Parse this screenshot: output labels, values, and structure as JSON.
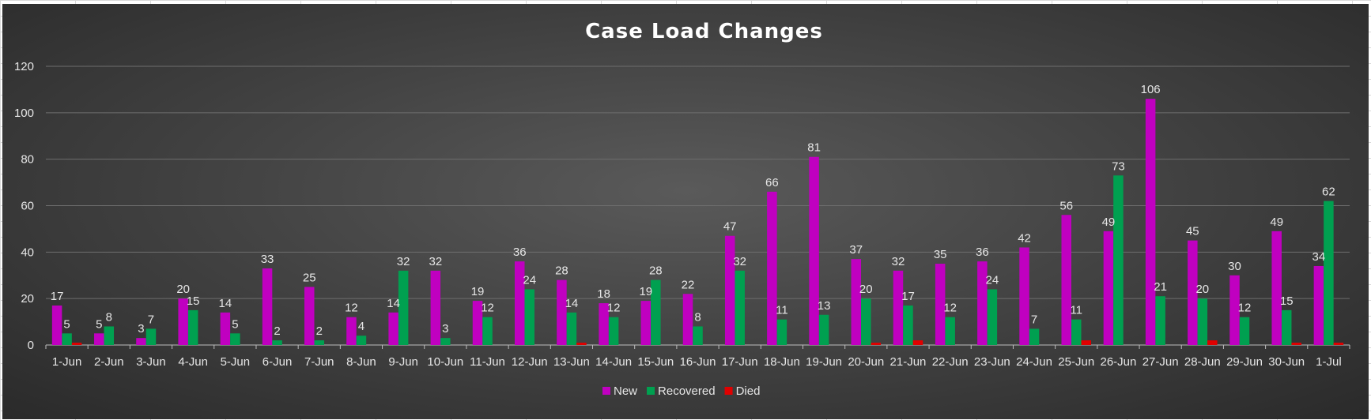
{
  "chart_data": {
    "type": "bar",
    "title": "Case Load Changes",
    "xlabel": "",
    "ylabel": "",
    "ylim": [
      0,
      120
    ],
    "yticks": [
      0,
      20,
      40,
      60,
      80,
      100,
      120
    ],
    "grid": true,
    "legend_position": "bottom",
    "categories": [
      "1-Jun",
      "2-Jun",
      "3-Jun",
      "4-Jun",
      "5-Jun",
      "6-Jun",
      "7-Jun",
      "8-Jun",
      "9-Jun",
      "10-Jun",
      "11-Jun",
      "12-Jun",
      "13-Jun",
      "14-Jun",
      "15-Jun",
      "16-Jun",
      "17-Jun",
      "18-Jun",
      "19-Jun",
      "20-Jun",
      "21-Jun",
      "22-Jun",
      "23-Jun",
      "24-Jun",
      "25-Jun",
      "26-Jun",
      "27-Jun",
      "28-Jun",
      "29-Jun",
      "30-Jun",
      "1-Jul"
    ],
    "series": [
      {
        "name": "New",
        "color": "#c000c0",
        "labeled": true,
        "values": [
          17,
          5,
          3,
          20,
          14,
          33,
          25,
          12,
          14,
          32,
          19,
          36,
          28,
          18,
          19,
          22,
          47,
          66,
          81,
          37,
          32,
          35,
          36,
          42,
          56,
          49,
          106,
          45,
          30,
          49,
          34
        ]
      },
      {
        "name": "Recovered",
        "color": "#00a050",
        "labeled": true,
        "values": [
          5,
          8,
          7,
          15,
          5,
          2,
          2,
          4,
          32,
          3,
          12,
          24,
          14,
          12,
          28,
          8,
          32,
          11,
          13,
          20,
          17,
          12,
          24,
          7,
          11,
          73,
          21,
          20,
          12,
          15,
          62
        ]
      },
      {
        "name": "Died",
        "color": "#e00000",
        "labeled": false,
        "values": [
          1,
          0,
          0,
          0,
          0,
          0,
          0,
          0,
          0,
          0,
          0,
          0,
          1,
          0,
          0,
          0,
          0,
          0,
          0,
          1,
          2,
          0,
          0,
          0,
          2,
          0,
          0,
          2,
          0,
          1,
          1
        ]
      }
    ]
  }
}
